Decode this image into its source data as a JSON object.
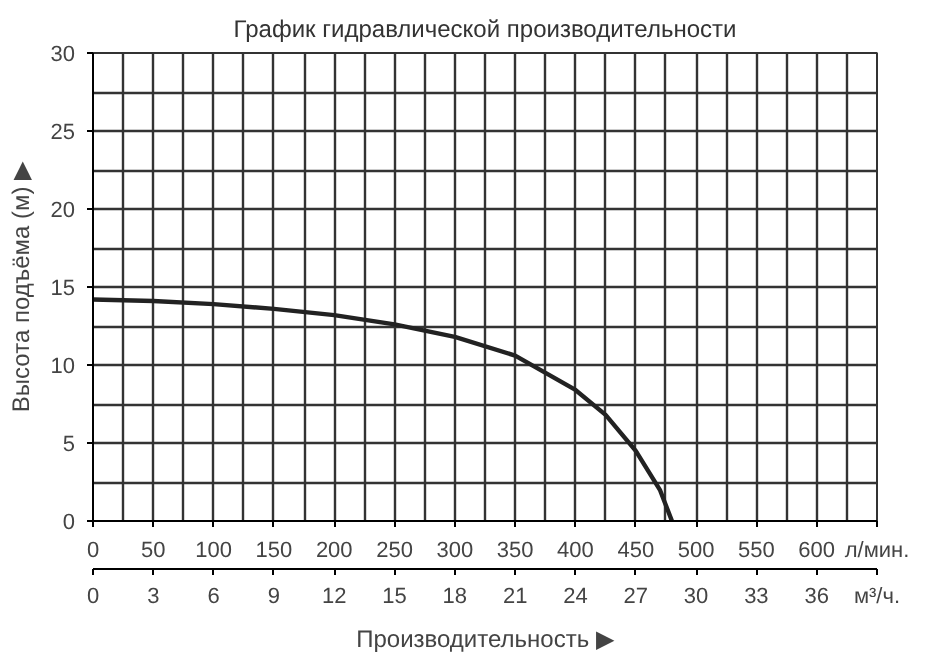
{
  "chart_data": {
    "type": "line",
    "title": "График гидравлической производительности",
    "xlabel": "Производительность ▶",
    "ylabel": "Высота подъёма (м) ▶",
    "x": [
      0,
      50,
      100,
      150,
      200,
      250,
      300,
      350,
      400,
      425,
      450,
      470,
      480
    ],
    "series": [
      {
        "color": "#222222",
        "values": [
          14.2,
          14.1,
          13.9,
          13.6,
          13.2,
          12.6,
          11.8,
          10.6,
          8.4,
          6.8,
          4.5,
          2.0,
          0
        ]
      }
    ],
    "xlim": [
      0,
      650
    ],
    "xticks": [
      0,
      50,
      100,
      150,
      200,
      250,
      300,
      350,
      400,
      450,
      500,
      550,
      600,
      {
        "value": 650,
        "label": "л/мин."
      }
    ],
    "x2lim": [
      0,
      39
    ],
    "x2ticks": [
      0,
      3,
      6,
      9,
      12,
      15,
      18,
      21,
      24,
      27,
      30,
      33,
      36,
      {
        "value": 39,
        "label": "м³/ч."
      }
    ],
    "ylim": [
      0,
      30
    ],
    "yticks": [
      0,
      5,
      10,
      15,
      20,
      25,
      30
    ],
    "grid": true,
    "marker": "none",
    "line_style": "solid"
  }
}
